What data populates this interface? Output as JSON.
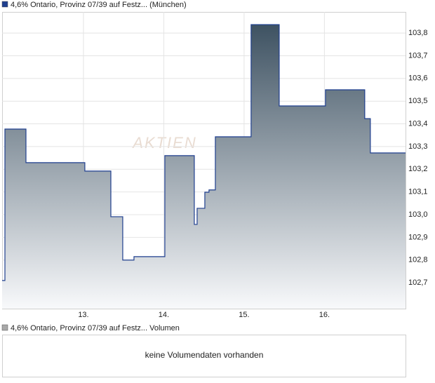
{
  "chart_data": {
    "type": "line",
    "series": [
      {
        "name": "4,6% Ontario, Provinz 07/39 auf Festz... (München)",
        "color": "#1f3f8f",
        "x": [
          11.987,
          12.022,
          12.284,
          13.017,
          13.341,
          13.489,
          13.629,
          14.013,
          14.38,
          14.415,
          14.511,
          14.563,
          14.642,
          15.087,
          15.437,
          16.013,
          16.502,
          16.572
        ],
        "values": [
          102.71,
          103.377,
          103.229,
          103.192,
          102.991,
          102.8,
          102.815,
          103.26,
          102.957,
          103.028,
          103.099,
          103.109,
          103.343,
          103.837,
          103.479,
          103.55,
          103.423,
          103.272
        ]
      }
    ],
    "xlim": [
      11.987,
      17.01
    ],
    "xticks": [
      {
        "value": 13,
        "label": "13."
      },
      {
        "value": 14,
        "label": "14."
      },
      {
        "value": 15,
        "label": "15."
      },
      {
        "value": 16,
        "label": "16."
      }
    ],
    "ylim": [
      102.586,
      103.893
    ],
    "yticks": [
      {
        "value": 102.7,
        "label": "102,7"
      },
      {
        "value": 102.8,
        "label": "102,8"
      },
      {
        "value": 102.9,
        "label": "102,9"
      },
      {
        "value": 103.0,
        "label": "103,0"
      },
      {
        "value": 103.1,
        "label": "103,1"
      },
      {
        "value": 103.2,
        "label": "103,2"
      },
      {
        "value": 103.3,
        "label": "103,3"
      },
      {
        "value": 103.4,
        "label": "103,4"
      },
      {
        "value": 103.5,
        "label": "103,5"
      },
      {
        "value": 103.6,
        "label": "103,6"
      },
      {
        "value": 103.7,
        "label": "103,7"
      },
      {
        "value": 103.8,
        "label": "103,8"
      }
    ],
    "grid": true,
    "watermark": "AKTIEN",
    "volume": {
      "legend": "4,6% Ontario, Provinz 07/39 auf Festz... Volumen",
      "color": "#a8a8a8",
      "message": "keine Volumendaten vorhanden"
    }
  }
}
